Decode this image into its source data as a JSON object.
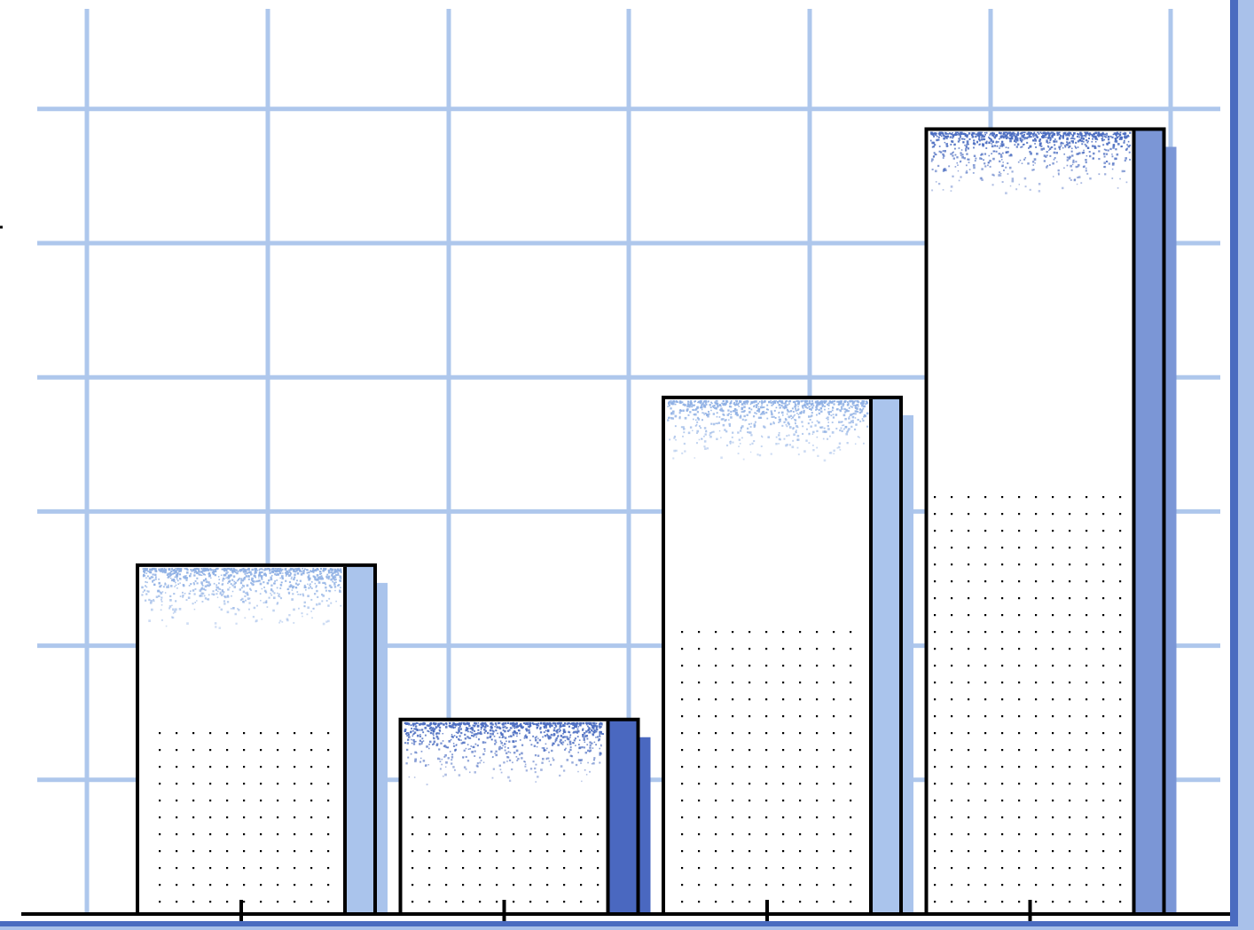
{
  "chart_data": {
    "type": "bar",
    "title": "",
    "xlabel": "",
    "ylabel": "",
    "categories": [
      "",
      "",
      "",
      ""
    ],
    "values": [
      2.6,
      1.45,
      3.85,
      5.85
    ],
    "ylim": [
      0,
      6.5
    ],
    "grid": true,
    "legend": "none",
    "colors": {
      "grid": "#aec7ec",
      "axis": "#000000",
      "bar_fill": "#ffffff",
      "bar_outline": "#000000",
      "stipple": "#4a6cc0",
      "shadow": [
        "#aac4ec",
        "#4a68c0",
        "#aac4ec",
        "#7b96d6"
      ],
      "frame": "#4a6cc0"
    }
  }
}
